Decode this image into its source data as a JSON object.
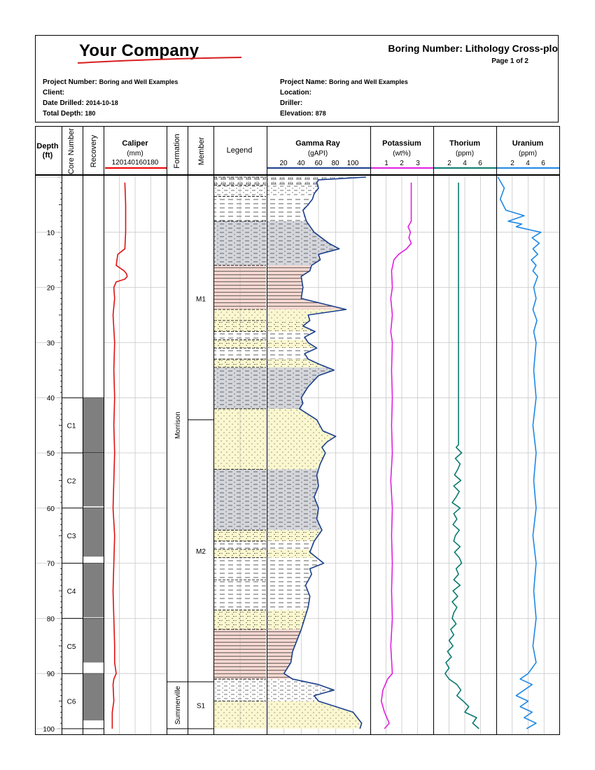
{
  "header": {
    "company": "Your Company",
    "boring_title": "Boring Number: Lithology Cross-plo",
    "page": "Page 1 of 2",
    "left_fields": [
      {
        "label": "Project Number:",
        "value": "Boring and Well Examples"
      },
      {
        "label": "Client:",
        "value": ""
      },
      {
        "label": "Date Drilled:",
        "value": "2014-10-18"
      },
      {
        "label": "Total Depth:",
        "value": "180"
      }
    ],
    "right_fields": [
      {
        "label": "Project Name:",
        "value": "Boring and Well Examples"
      },
      {
        "label": "Location:",
        "value": ""
      },
      {
        "label": "Driller:",
        "value": ""
      },
      {
        "label": "Elevation:",
        "value": "878"
      }
    ]
  },
  "columns": {
    "depth": {
      "title": "Depth",
      "unit": "(ft)"
    },
    "core_number": "Core Number",
    "recovery": "Recovery",
    "caliper": {
      "title": "Caliper",
      "unit": "(mm)",
      "scale": "120140160180"
    },
    "formation": "Formation",
    "member": "Member",
    "legend": "Legend",
    "gamma": {
      "title": "Gamma Ray",
      "unit": "(gAPI)",
      "ticks": [
        "20",
        "40",
        "60",
        "80",
        "100"
      ]
    },
    "potassium": {
      "title": "Potassium",
      "unit": "(wt%)",
      "ticks": [
        "1",
        "2",
        "3"
      ]
    },
    "thorium": {
      "title": "Thorium",
      "unit": "(ppm)",
      "ticks": [
        "2",
        "4",
        "6"
      ]
    },
    "uranium": {
      "title": "Uranium",
      "unit": "(ppm)",
      "ticks": [
        "2",
        "4",
        "6"
      ]
    }
  },
  "chart_data": {
    "type": "line",
    "title": "Lithology Cross-plot well log",
    "depth_range": [
      0,
      100
    ],
    "depth_ticks": [
      "10",
      "20",
      "30",
      "40",
      "50",
      "60",
      "70",
      "80",
      "90",
      "100"
    ],
    "cores": [
      {
        "name": "C1",
        "top": 40,
        "bottom": 50,
        "recovered_to": 50
      },
      {
        "name": "C2",
        "top": 50,
        "bottom": 60,
        "recovered_to": 59.7
      },
      {
        "name": "C3",
        "top": 60,
        "bottom": 70,
        "recovered_to": 68.8
      },
      {
        "name": "C4",
        "top": 70,
        "bottom": 80,
        "recovered_to": 79.8
      },
      {
        "name": "C5",
        "top": 80,
        "bottom": 90,
        "recovered_to": 88
      },
      {
        "name": "C6",
        "top": 90,
        "bottom": 100,
        "recovered_to": 98.5
      }
    ],
    "formations": [
      {
        "name": "Morrison",
        "top": 0,
        "bottom": 91.5
      },
      {
        "name": "Summerville",
        "top": 91.5,
        "bottom": 100
      }
    ],
    "members": [
      {
        "name": "M1",
        "top": 0,
        "bottom": 44
      },
      {
        "name": "M2",
        "top": 44,
        "bottom": 91.5
      },
      {
        "name": "S1",
        "top": 91.5,
        "bottom": 100
      }
    ],
    "lithology": [
      {
        "top": 0,
        "bottom": 1.5,
        "type": "peat"
      },
      {
        "top": 1.5,
        "bottom": 3.5,
        "type": "silt"
      },
      {
        "top": 3.5,
        "bottom": 8,
        "type": "shale"
      },
      {
        "top": 8,
        "bottom": 16,
        "type": "silty-shale"
      },
      {
        "top": 16,
        "bottom": 24,
        "type": "red-shale"
      },
      {
        "top": 24,
        "bottom": 26,
        "type": "sandstone"
      },
      {
        "top": 26,
        "bottom": 28,
        "type": "siltstone"
      },
      {
        "top": 28,
        "bottom": 29.5,
        "type": "shale"
      },
      {
        "top": 29.5,
        "bottom": 31,
        "type": "siltstone"
      },
      {
        "top": 31,
        "bottom": 33,
        "type": "shale"
      },
      {
        "top": 33,
        "bottom": 34.5,
        "type": "siltstone"
      },
      {
        "top": 34.5,
        "bottom": 42,
        "type": "silty-shale"
      },
      {
        "top": 42,
        "bottom": 53,
        "type": "sandstone"
      },
      {
        "top": 53,
        "bottom": 64,
        "type": "silty-shale"
      },
      {
        "top": 64,
        "bottom": 66,
        "type": "siltstone"
      },
      {
        "top": 66,
        "bottom": 67.5,
        "type": "shale"
      },
      {
        "top": 67.5,
        "bottom": 69,
        "type": "siltstone"
      },
      {
        "top": 69,
        "bottom": 73,
        "type": "shale"
      },
      {
        "top": 73,
        "bottom": 78.5,
        "type": "shale"
      },
      {
        "top": 78.5,
        "bottom": 82,
        "type": "siltstone"
      },
      {
        "top": 82,
        "bottom": 91,
        "type": "red-shale"
      },
      {
        "top": 91,
        "bottom": 95,
        "type": "silt"
      },
      {
        "top": 95,
        "bottom": 100,
        "type": "sandstone"
      }
    ],
    "caliper": {
      "range": [
        120,
        200
      ],
      "depth": [
        1,
        5,
        10,
        13,
        14,
        15,
        16,
        17,
        17.5,
        18,
        18.5,
        19,
        20,
        22,
        25,
        30,
        35,
        40,
        45,
        50,
        55,
        60,
        65,
        70,
        75,
        80,
        85,
        88,
        90,
        91,
        92,
        95,
        97,
        100
      ],
      "value": [
        147,
        148,
        148,
        147,
        138,
        137,
        136,
        146,
        149,
        150,
        147,
        136,
        133,
        134,
        132,
        134,
        133,
        134,
        133,
        134,
        133,
        132,
        134,
        133,
        132,
        133,
        134,
        134,
        136,
        133,
        132,
        133,
        131,
        131
      ]
    },
    "gamma": {
      "range": [
        0,
        120
      ],
      "depth": [
        0,
        0.5,
        1,
        2,
        3,
        4,
        5,
        6,
        8,
        10,
        12,
        13,
        14,
        15,
        16,
        17,
        18,
        20,
        22,
        23,
        24,
        25,
        26,
        27,
        28,
        29,
        30,
        31,
        32,
        33,
        34,
        35,
        36,
        38,
        40,
        41,
        42,
        44,
        46,
        47,
        48,
        49,
        50,
        52,
        54,
        56,
        58,
        60,
        62,
        64,
        66,
        68,
        70,
        71,
        72,
        74,
        76,
        78,
        80,
        82,
        84,
        86,
        88,
        90,
        91,
        92,
        93,
        94,
        95,
        96,
        97,
        98,
        99,
        100
      ],
      "value": [
        115,
        60,
        58,
        60,
        55,
        53,
        48,
        42,
        46,
        55,
        72,
        84,
        60,
        62,
        52,
        50,
        40,
        42,
        40,
        66,
        92,
        48,
        50,
        42,
        56,
        44,
        48,
        58,
        44,
        48,
        62,
        78,
        60,
        48,
        40,
        42,
        38,
        58,
        65,
        80,
        70,
        64,
        68,
        62,
        58,
        60,
        55,
        60,
        58,
        64,
        55,
        50,
        66,
        50,
        52,
        45,
        50,
        48,
        44,
        40,
        35,
        30,
        28,
        20,
        30,
        60,
        78,
        55,
        60,
        80,
        100,
        105,
        110,
        108
      ]
    },
    "potassium": {
      "range": [
        0,
        4
      ],
      "depth": [
        1,
        5,
        8,
        9,
        10,
        11,
        12,
        13,
        14,
        15,
        17,
        20,
        22,
        25,
        28,
        30,
        35,
        40,
        45,
        50,
        55,
        60,
        65,
        70,
        75,
        80,
        85,
        90,
        91,
        93,
        95,
        97,
        99,
        100
      ],
      "value": [
        2.6,
        2.6,
        2.6,
        2.4,
        2.55,
        2.45,
        2.6,
        2.3,
        1.8,
        1.5,
        1.35,
        1.4,
        1.3,
        1.4,
        1.3,
        1.4,
        1.35,
        1.4,
        1.35,
        1.4,
        1.3,
        1.4,
        1.35,
        1.4,
        1.35,
        1.4,
        1.3,
        1.4,
        1.1,
        0.8,
        0.7,
        0.9,
        1.2,
        0.9
      ]
    },
    "thorium": {
      "range": [
        0,
        8
      ],
      "depth": [
        1,
        48.5,
        49,
        50,
        51,
        52,
        53,
        54,
        55,
        56,
        57,
        58,
        59,
        60,
        61,
        62,
        63,
        64,
        65,
        66,
        67,
        68,
        69,
        70,
        71,
        72,
        73,
        74,
        75,
        76,
        77,
        78,
        79,
        80,
        81,
        82,
        83,
        84,
        85,
        86,
        87,
        88,
        89,
        90,
        91,
        92,
        93,
        94,
        95,
        96,
        97,
        98,
        99,
        100
      ],
      "value": [
        3.2,
        3.2,
        2.9,
        3.6,
        2.8,
        3.4,
        3.1,
        2.7,
        3.5,
        2.6,
        3.3,
        2.9,
        2.4,
        3.4,
        2.6,
        3.0,
        2.5,
        3.3,
        2.8,
        2.6,
        3.4,
        2.7,
        3.3,
        3.6,
        2.9,
        3.2,
        2.6,
        3.4,
        2.5,
        3.1,
        2.4,
        3.0,
        2.6,
        2.4,
        2.9,
        2.2,
        2.6,
        2.0,
        2.5,
        1.8,
        2.3,
        1.6,
        2.0,
        1.5,
        2.0,
        3.0,
        3.5,
        3.0,
        3.8,
        4.5,
        4.0,
        5.5,
        5.0,
        5.8
      ]
    },
    "uranium": {
      "range": [
        0,
        8
      ],
      "depth": [
        0,
        2,
        4,
        6,
        7,
        8,
        8.5,
        9,
        10,
        11,
        12,
        13,
        14,
        15,
        16,
        17,
        18,
        20,
        22,
        24,
        26,
        28,
        30,
        35,
        40,
        45,
        50,
        55,
        60,
        65,
        70,
        75,
        80,
        85,
        88,
        90,
        91,
        92,
        93,
        94,
        95,
        96,
        97,
        98,
        99,
        100
      ],
      "value": [
        0.2,
        1,
        0.5,
        1.2,
        3.5,
        1.5,
        3.2,
        2.5,
        5.6,
        4.5,
        5.4,
        4.6,
        5.2,
        4.4,
        5.0,
        4.6,
        5.2,
        4.7,
        5.0,
        4.6,
        5.1,
        4.7,
        5.0,
        4.7,
        5.0,
        4.6,
        5.0,
        4.7,
        5.0,
        4.6,
        5.0,
        4.7,
        5.0,
        4.6,
        5.0,
        4.0,
        3.0,
        4.5,
        3.5,
        2.5,
        4.0,
        3.0,
        4.5,
        3.5,
        5.0,
        3.8
      ]
    }
  }
}
